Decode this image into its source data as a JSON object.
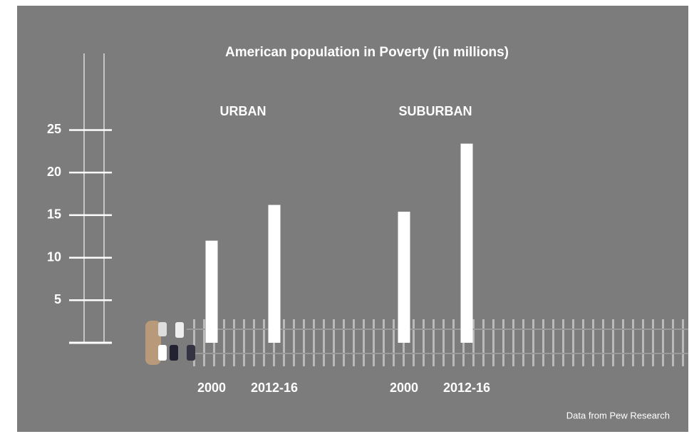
{
  "chart_data": {
    "type": "bar",
    "title": "American population in Poverty (in millions)",
    "groups": [
      {
        "name": "URBAN",
        "categories": [
          "2000",
          "2012-16"
        ],
        "values": [
          12,
          16.2
        ]
      },
      {
        "name": "SUBURBAN",
        "categories": [
          "2000",
          "2012-16"
        ],
        "values": [
          15.4,
          23.4
        ]
      }
    ],
    "color": "#ffffff",
    "ylim": [
      0,
      34
    ],
    "yticks": [
      5,
      10,
      15,
      20,
      25
    ],
    "source": "Data from Pew Research"
  }
}
